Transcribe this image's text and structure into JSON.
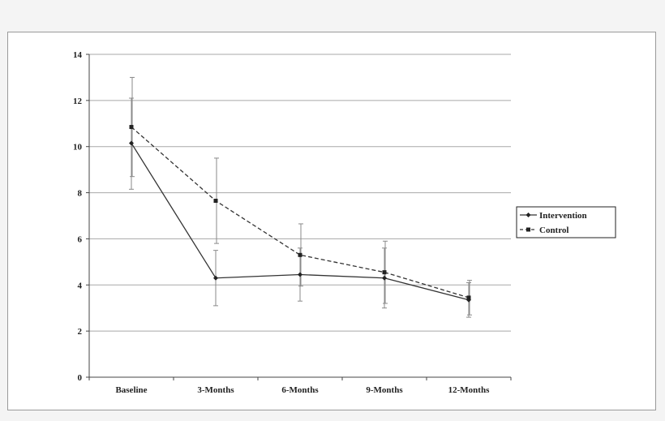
{
  "chart_data": {
    "type": "line",
    "categories": [
      "Baseline",
      "3-Months",
      "6-Months",
      "9-Months",
      "12-Months"
    ],
    "ylim": [
      0,
      14
    ],
    "yticks": [
      0,
      2,
      4,
      6,
      8,
      10,
      12,
      14
    ],
    "grid": true,
    "legend_position": "right",
    "series": [
      {
        "name": "Intervention",
        "values": [
          10.15,
          4.3,
          4.45,
          4.3,
          3.35
        ],
        "error_low": [
          8.15,
          3.1,
          3.3,
          3.0,
          2.6
        ],
        "error_high": [
          12.1,
          5.5,
          5.6,
          5.6,
          4.1
        ],
        "line_style": "solid",
        "marker": "diamond",
        "color": "#333333"
      },
      {
        "name": "Control",
        "values": [
          10.85,
          7.65,
          5.3,
          4.55,
          3.45
        ],
        "error_low": [
          8.7,
          5.8,
          3.95,
          3.2,
          2.7
        ],
        "error_high": [
          13.0,
          9.5,
          6.65,
          5.9,
          4.2
        ],
        "line_style": "dashed",
        "marker": "square",
        "color": "#333333"
      }
    ]
  }
}
